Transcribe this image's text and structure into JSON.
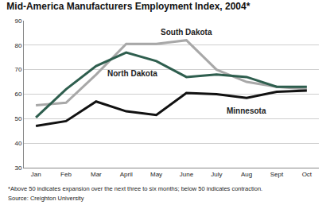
{
  "chart_data": {
    "type": "line",
    "title": "Mid-America Manufacturers Employment Index, 2004*",
    "categories": [
      "Jan",
      "Feb",
      "Mar",
      "April",
      "May",
      "June",
      "July",
      "Aug",
      "Sept",
      "Oct"
    ],
    "series": [
      {
        "name": "South Dakota",
        "color": "#a8a8a8",
        "values": [
          55.5,
          56.5,
          68,
          80.5,
          80.5,
          82,
          70,
          65,
          63,
          62
        ]
      },
      {
        "name": "North Dakota",
        "color": "#2e5e4e",
        "values": [
          50.5,
          62,
          71.5,
          77,
          73.5,
          67,
          68,
          67,
          63,
          63
        ]
      },
      {
        "name": "Minnesota",
        "color": "#111111",
        "values": [
          47,
          49,
          57,
          53,
          51.5,
          60.5,
          60,
          58.5,
          61,
          61.5
        ]
      }
    ],
    "ylim": [
      30,
      90
    ],
    "yticks": [
      30,
      40,
      50,
      60,
      70,
      80,
      90
    ],
    "grid": true,
    "annotations": [
      "*Above 50 indicates expansion over the next three to six months; below 50 indicates contraction.",
      "Source: Creighton University"
    ]
  }
}
